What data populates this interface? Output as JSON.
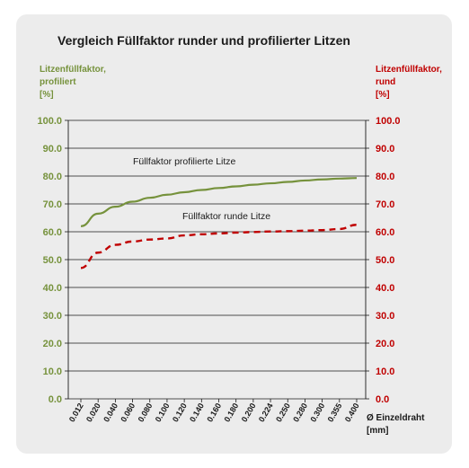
{
  "chart_data": {
    "type": "line",
    "title": "Vergleich Füllfaktor runder und profilierter Litzen",
    "ylabel_left": [
      "Litzenfüllfaktor,",
      "profiliert",
      "[%]"
    ],
    "ylabel_right": [
      "Litzenfüllfaktor,",
      "rund",
      "[%]"
    ],
    "xlabel": [
      "Ø Einzeldraht",
      "[mm]"
    ],
    "categories": [
      "0.012",
      "0.020",
      "0.040",
      "0.060",
      "0.080",
      "0.100",
      "0.120",
      "0.140",
      "0.160",
      "0.180",
      "0.200",
      "0.224",
      "0.250",
      "0.280",
      "0.300",
      "0.355",
      "0.400"
    ],
    "ylim": [
      0,
      100
    ],
    "yticks": [
      "0.0",
      "10.0",
      "20.0",
      "30.0",
      "40.0",
      "50.0",
      "60.0",
      "70.0",
      "80.0",
      "90.0",
      "100.0"
    ],
    "grid": true,
    "series": [
      {
        "name": "Füllfaktor profilierte Litze",
        "color": "#76923c",
        "style": "solid",
        "axis": "left",
        "values": [
          62.0,
          66.5,
          69.0,
          70.8,
          72.2,
          73.3,
          74.2,
          75.0,
          75.7,
          76.3,
          76.9,
          77.4,
          77.9,
          78.4,
          78.8,
          79.1,
          79.3
        ]
      },
      {
        "name": "Füllfaktor runde Litze",
        "color": "#c00000",
        "style": "dashed",
        "axis": "right",
        "values": [
          47.0,
          52.5,
          55.3,
          56.5,
          57.2,
          57.6,
          58.7,
          59.1,
          59.4,
          59.7,
          59.9,
          60.1,
          60.2,
          60.4,
          60.6,
          61.0,
          62.5
        ]
      }
    ],
    "annotations": [
      "Füllfaktor profilierte  Litze",
      "Füllfaktor runde  Litze"
    ]
  }
}
